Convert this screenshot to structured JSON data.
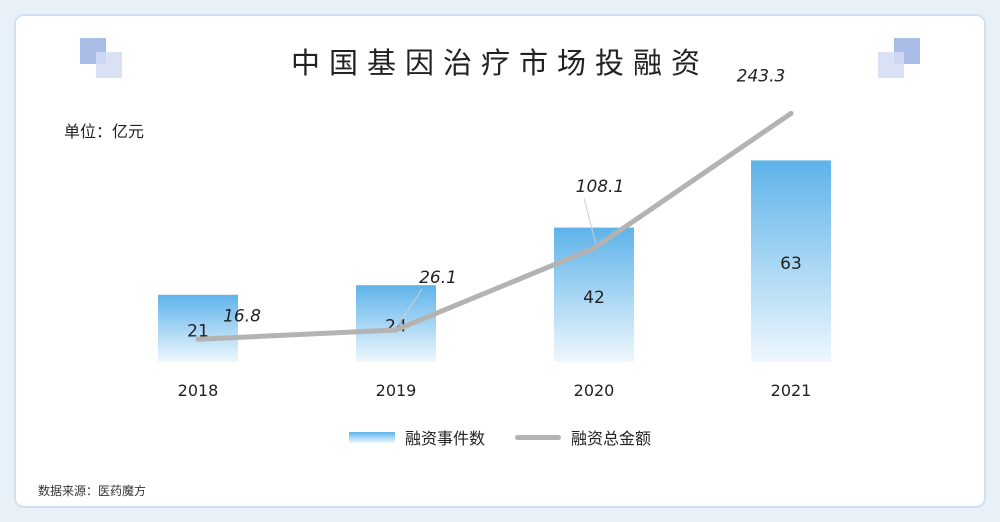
{
  "title": "中国基因治疗市场投融资",
  "unit_label": "单位：亿元",
  "source": "数据来源：医药魔方",
  "colors": {
    "bar_top": "#5eb3ea",
    "bar_bottom": "#eef7fd",
    "line": "#b3b3b3",
    "deco_dark": "#a9bde6",
    "deco_light": "#d3dcf2"
  },
  "chart_data": {
    "type": "bar",
    "title": "中国基因治疗市场投融资",
    "categories": [
      "2018",
      "2019",
      "2020",
      "2021"
    ],
    "series": [
      {
        "name": "融资事件数",
        "type": "bar",
        "values": [
          21,
          24,
          42,
          63
        ]
      },
      {
        "name": "融资总金额",
        "type": "line",
        "values": [
          16.8,
          26.1,
          108.1,
          243.3
        ]
      }
    ],
    "legend_position": "bottom",
    "grid": false
  }
}
